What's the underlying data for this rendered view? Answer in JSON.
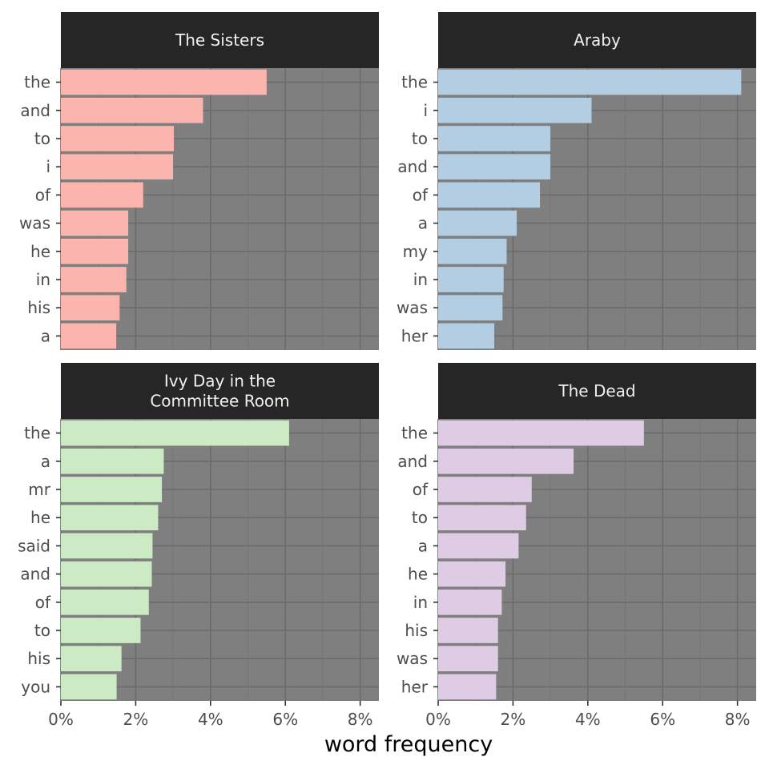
{
  "chart_data": [
    {
      "type": "bar",
      "orientation": "horizontal",
      "title": "The Sisters",
      "color": "#FBB4AE",
      "categories": [
        "the",
        "and",
        "to",
        "i",
        "of",
        "was",
        "he",
        "in",
        "his",
        "a"
      ],
      "values": [
        5.5,
        3.8,
        3.02,
        3.0,
        2.2,
        1.8,
        1.8,
        1.75,
        1.57,
        1.48
      ]
    },
    {
      "type": "bar",
      "orientation": "horizontal",
      "title": "Araby",
      "color": "#B3CDE3",
      "categories": [
        "the",
        "i",
        "to",
        "and",
        "of",
        "a",
        "my",
        "in",
        "was",
        "her"
      ],
      "values": [
        8.1,
        4.1,
        3.0,
        3.0,
        2.72,
        2.1,
        1.83,
        1.75,
        1.72,
        1.5
      ]
    },
    {
      "type": "bar",
      "orientation": "horizontal",
      "title": "Ivy Day in the\nCommittee Room",
      "color": "#CCEBC5",
      "categories": [
        "the",
        "a",
        "mr",
        "he",
        "said",
        "and",
        "of",
        "to",
        "his",
        "you"
      ],
      "values": [
        6.1,
        2.75,
        2.7,
        2.6,
        2.45,
        2.43,
        2.35,
        2.13,
        1.62,
        1.49
      ]
    },
    {
      "type": "bar",
      "orientation": "horizontal",
      "title": "The Dead",
      "color": "#DECBE4",
      "categories": [
        "the",
        "and",
        "of",
        "to",
        "a",
        "he",
        "in",
        "his",
        "was",
        "her"
      ],
      "values": [
        5.5,
        3.62,
        2.5,
        2.35,
        2.15,
        1.8,
        1.7,
        1.6,
        1.6,
        1.55
      ]
    }
  ],
  "axis": {
    "xlabel": "word frequency",
    "xlim": [
      0,
      8.5
    ],
    "xticks": [
      0,
      2,
      4,
      6,
      8
    ],
    "xtick_labels": [
      "0%",
      "2%",
      "4%",
      "6%",
      "8%"
    ],
    "grid": true
  },
  "theme": {
    "panel_bg": "#7F7F7F",
    "strip_bg": "#262626",
    "strip_text": "#F0F0F0",
    "grid_major": "#6B6B6B",
    "grid_minor": "#767676",
    "tick_text": "#4D4D4D",
    "axis_title": "#000000"
  }
}
